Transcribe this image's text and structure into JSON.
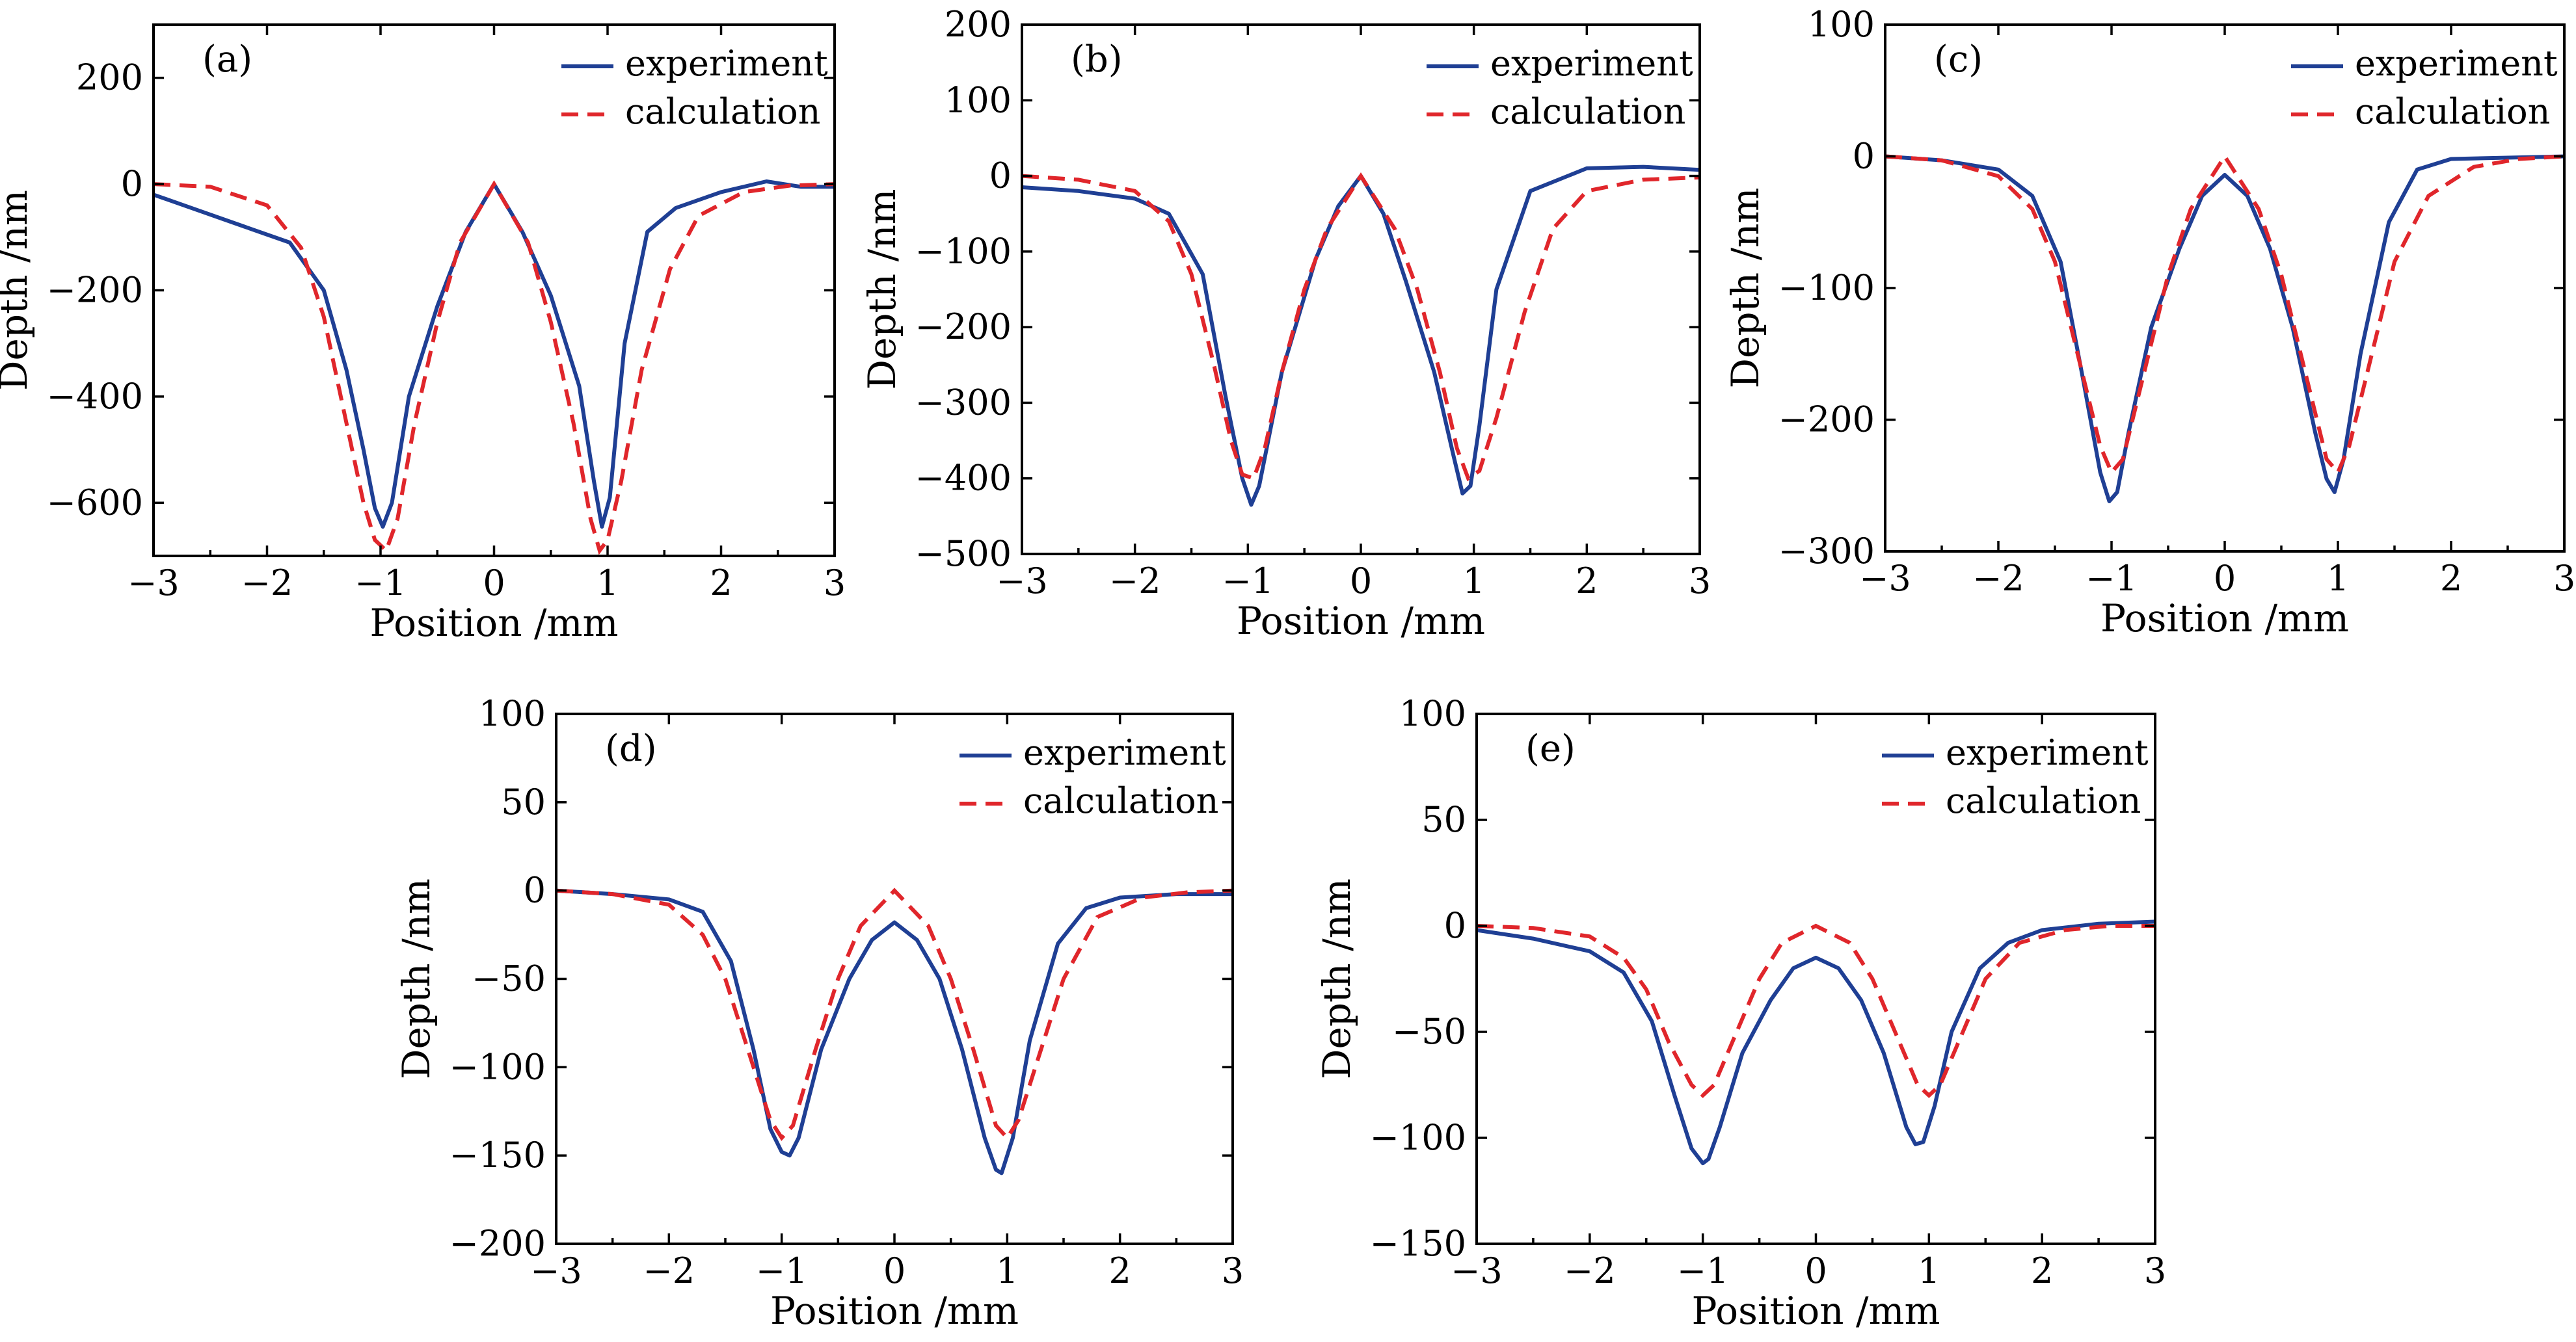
{
  "legend": {
    "experiment": "experiment",
    "calculation": "calculation"
  },
  "chart_data": [
    {
      "type": "line",
      "panel": "(a)",
      "xlabel": "Position /mm",
      "ylabel": "Depth /nm",
      "xlim": [
        -3,
        3
      ],
      "ylim": [
        -700,
        300
      ],
      "xticks": [
        -3,
        -2,
        -1,
        0,
        1,
        2,
        3
      ],
      "yticks": [
        -600,
        -400,
        -200,
        0,
        200
      ],
      "xticklabels": [
        "−3",
        "−2",
        "−1",
        "0",
        "1",
        "2",
        "3"
      ],
      "yticklabels": [
        "−600",
        "−400",
        "−200",
        "0",
        "200"
      ],
      "series": [
        {
          "name": "experiment",
          "x": [
            -3,
            -2.6,
            -2.2,
            -1.8,
            -1.5,
            -1.3,
            -1.15,
            -1.05,
            -0.98,
            -0.9,
            -0.75,
            -0.5,
            -0.25,
            0,
            0.25,
            0.5,
            0.75,
            0.88,
            0.95,
            1.02,
            1.15,
            1.35,
            1.6,
            2.0,
            2.4,
            2.7,
            3
          ],
          "values": [
            -20,
            -50,
            -80,
            -110,
            -200,
            -350,
            -500,
            -610,
            -645,
            -600,
            -400,
            -230,
            -90,
            0,
            -90,
            -210,
            -380,
            -560,
            -645,
            -590,
            -300,
            -90,
            -45,
            -15,
            5,
            -5,
            -5
          ]
        },
        {
          "name": "calculation",
          "x": [
            -3,
            -2.5,
            -2.0,
            -1.7,
            -1.5,
            -1.3,
            -1.15,
            -1.05,
            -0.95,
            -0.85,
            -0.7,
            -0.5,
            -0.3,
            0,
            0.3,
            0.5,
            0.7,
            0.85,
            0.93,
            1.0,
            1.12,
            1.3,
            1.55,
            1.8,
            2.2,
            2.6,
            3
          ],
          "values": [
            0,
            -5,
            -40,
            -120,
            -250,
            -450,
            -600,
            -670,
            -690,
            -630,
            -450,
            -260,
            -110,
            0,
            -110,
            -260,
            -450,
            -630,
            -690,
            -670,
            -560,
            -350,
            -160,
            -60,
            -15,
            -3,
            0
          ]
        }
      ]
    },
    {
      "type": "line",
      "panel": "(b)",
      "xlabel": "Position /mm",
      "ylabel": "Depth /nm",
      "xlim": [
        -3,
        3
      ],
      "ylim": [
        -500,
        200
      ],
      "xticks": [
        -3,
        -2,
        -1,
        0,
        1,
        2,
        3
      ],
      "yticks": [
        -500,
        -400,
        -300,
        -200,
        -100,
        0,
        100,
        200
      ],
      "xticklabels": [
        "−3",
        "−2",
        "−1",
        "0",
        "1",
        "2",
        "3"
      ],
      "yticklabels": [
        "−500",
        "−400",
        "−300",
        "−200",
        "−100",
        "0",
        "100",
        "200"
      ],
      "series": [
        {
          "name": "experiment",
          "x": [
            -3,
            -2.5,
            -2.0,
            -1.7,
            -1.4,
            -1.2,
            -1.05,
            -0.97,
            -0.9,
            -0.7,
            -0.4,
            -0.2,
            0,
            0.2,
            0.4,
            0.65,
            0.82,
            0.9,
            0.97,
            1.05,
            1.2,
            1.5,
            2.0,
            2.5,
            3
          ],
          "values": [
            -15,
            -20,
            -30,
            -50,
            -130,
            -290,
            -400,
            -435,
            -410,
            -260,
            -110,
            -40,
            0,
            -50,
            -140,
            -260,
            -370,
            -420,
            -410,
            -330,
            -150,
            -20,
            10,
            12,
            8
          ]
        },
        {
          "name": "calculation",
          "x": [
            -3,
            -2.5,
            -2.0,
            -1.7,
            -1.5,
            -1.3,
            -1.15,
            -1.05,
            -0.95,
            -0.85,
            -0.7,
            -0.5,
            -0.3,
            0,
            0.3,
            0.5,
            0.7,
            0.85,
            0.95,
            1.05,
            1.2,
            1.45,
            1.7,
            2.0,
            2.5,
            3
          ],
          "values": [
            0,
            -5,
            -20,
            -60,
            -130,
            -250,
            -350,
            -395,
            -400,
            -360,
            -260,
            -150,
            -70,
            0,
            -70,
            -150,
            -260,
            -360,
            -400,
            -390,
            -320,
            -180,
            -70,
            -20,
            -5,
            -2
          ]
        }
      ]
    },
    {
      "type": "line",
      "panel": "(c)",
      "xlabel": "Position /mm",
      "ylabel": "Depth /nm",
      "xlim": [
        -3,
        3
      ],
      "ylim": [
        -300,
        100
      ],
      "xticks": [
        -3,
        -2,
        -1,
        0,
        1,
        2,
        3
      ],
      "yticks": [
        -300,
        -200,
        -100,
        0,
        100
      ],
      "xticklabels": [
        "−3",
        "−2",
        "−1",
        "0",
        "1",
        "2",
        "3"
      ],
      "yticklabels": [
        "−300",
        "−200",
        "−100",
        "0",
        "100"
      ],
      "series": [
        {
          "name": "experiment",
          "x": [
            -3,
            -2.5,
            -2.0,
            -1.7,
            -1.45,
            -1.25,
            -1.1,
            -1.02,
            -0.95,
            -0.85,
            -0.65,
            -0.4,
            -0.2,
            0,
            0.2,
            0.4,
            0.6,
            0.8,
            0.9,
            0.97,
            1.05,
            1.2,
            1.45,
            1.7,
            2.0,
            2.5,
            3
          ],
          "values": [
            0,
            -3,
            -10,
            -30,
            -80,
            -170,
            -240,
            -262,
            -255,
            -210,
            -130,
            -70,
            -30,
            -14,
            -30,
            -70,
            -130,
            -210,
            -245,
            -255,
            -230,
            -150,
            -50,
            -10,
            -2,
            -1,
            0
          ]
        },
        {
          "name": "calculation",
          "x": [
            -3,
            -2.5,
            -2.0,
            -1.7,
            -1.5,
            -1.3,
            -1.1,
            -1.0,
            -0.9,
            -0.7,
            -0.5,
            -0.3,
            0,
            0.3,
            0.5,
            0.7,
            0.9,
            1.0,
            1.1,
            1.3,
            1.5,
            1.8,
            2.2,
            2.6,
            3
          ],
          "values": [
            0,
            -3,
            -15,
            -40,
            -80,
            -150,
            -220,
            -240,
            -230,
            -160,
            -90,
            -40,
            0,
            -40,
            -90,
            -160,
            -230,
            -240,
            -220,
            -150,
            -80,
            -30,
            -8,
            -2,
            0
          ]
        }
      ]
    },
    {
      "type": "line",
      "panel": "(d)",
      "xlabel": "Position /mm",
      "ylabel": "Depth /nm",
      "xlim": [
        -3,
        3
      ],
      "ylim": [
        -200,
        100
      ],
      "xticks": [
        -3,
        -2,
        -1,
        0,
        1,
        2,
        3
      ],
      "yticks": [
        -200,
        -150,
        -100,
        -50,
        0,
        50,
        100
      ],
      "xticklabels": [
        "−3",
        "−2",
        "−1",
        "0",
        "1",
        "2",
        "3"
      ],
      "yticklabels": [
        "−200",
        "−150",
        "−100",
        "−50",
        "0",
        "50",
        "100"
      ],
      "series": [
        {
          "name": "experiment",
          "x": [
            -3,
            -2.5,
            -2.0,
            -1.7,
            -1.45,
            -1.25,
            -1.1,
            -1.0,
            -0.93,
            -0.85,
            -0.65,
            -0.4,
            -0.2,
            0,
            0.2,
            0.4,
            0.6,
            0.8,
            0.9,
            0.95,
            1.05,
            1.2,
            1.45,
            1.7,
            2.0,
            2.5,
            3
          ],
          "values": [
            0,
            -2,
            -5,
            -12,
            -40,
            -90,
            -135,
            -148,
            -150,
            -140,
            -90,
            -50,
            -28,
            -18,
            -28,
            -50,
            -90,
            -140,
            -158,
            -160,
            -140,
            -85,
            -30,
            -10,
            -4,
            -2,
            -2
          ]
        },
        {
          "name": "calculation",
          "x": [
            -3,
            -2.5,
            -2.0,
            -1.7,
            -1.5,
            -1.3,
            -1.1,
            -1.0,
            -0.9,
            -0.7,
            -0.5,
            -0.3,
            0,
            0.3,
            0.5,
            0.7,
            0.9,
            1.0,
            1.1,
            1.3,
            1.5,
            1.8,
            2.2,
            2.6,
            3
          ],
          "values": [
            0,
            -2,
            -8,
            -25,
            -50,
            -90,
            -130,
            -140,
            -133,
            -90,
            -50,
            -20,
            0,
            -20,
            -50,
            -90,
            -133,
            -140,
            -130,
            -90,
            -50,
            -15,
            -4,
            -1,
            0
          ]
        }
      ]
    },
    {
      "type": "line",
      "panel": "(e)",
      "xlabel": "Position /mm",
      "ylabel": "Depth /nm",
      "xlim": [
        -3,
        3
      ],
      "ylim": [
        -150,
        100
      ],
      "xticks": [
        -3,
        -2,
        -1,
        0,
        1,
        2,
        3
      ],
      "yticks": [
        -150,
        -100,
        -50,
        0,
        50,
        100
      ],
      "xticklabels": [
        "−3",
        "−2",
        "−1",
        "0",
        "1",
        "2",
        "3"
      ],
      "yticklabels": [
        "−150",
        "−100",
        "−50",
        "0",
        "50",
        "100"
      ],
      "series": [
        {
          "name": "experiment",
          "x": [
            -3,
            -2.5,
            -2.0,
            -1.7,
            -1.45,
            -1.25,
            -1.1,
            -1.0,
            -0.95,
            -0.85,
            -0.65,
            -0.4,
            -0.2,
            0,
            0.2,
            0.4,
            0.6,
            0.8,
            0.88,
            0.95,
            1.05,
            1.2,
            1.45,
            1.7,
            2.0,
            2.5,
            3
          ],
          "values": [
            -2,
            -6,
            -12,
            -22,
            -45,
            -80,
            -105,
            -112,
            -110,
            -95,
            -60,
            -35,
            -20,
            -15,
            -20,
            -35,
            -60,
            -95,
            -103,
            -102,
            -85,
            -50,
            -20,
            -8,
            -2,
            1,
            2
          ]
        },
        {
          "name": "calculation",
          "x": [
            -3,
            -2.5,
            -2.0,
            -1.7,
            -1.5,
            -1.3,
            -1.1,
            -1.0,
            -0.9,
            -0.7,
            -0.5,
            -0.3,
            0,
            0.3,
            0.5,
            0.7,
            0.9,
            1.0,
            1.1,
            1.3,
            1.5,
            1.8,
            2.2,
            2.6,
            3
          ],
          "values": [
            0,
            -1,
            -5,
            -15,
            -30,
            -55,
            -75,
            -80,
            -75,
            -50,
            -25,
            -8,
            0,
            -8,
            -25,
            -50,
            -75,
            -80,
            -75,
            -50,
            -25,
            -8,
            -2,
            0,
            0
          ]
        }
      ]
    }
  ]
}
